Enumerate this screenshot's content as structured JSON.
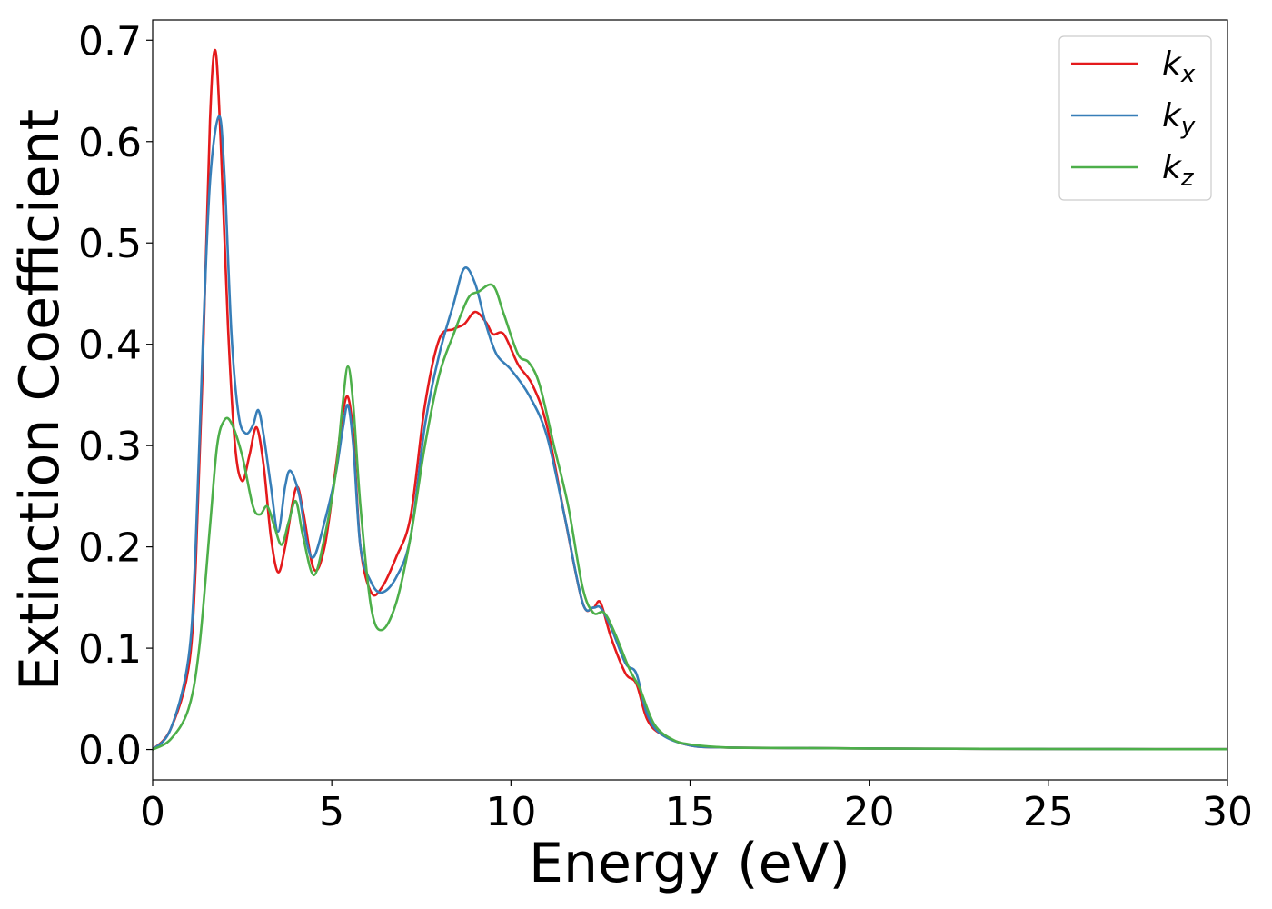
{
  "chart_data": {
    "type": "line",
    "title": "",
    "xlabel": "Energy (eV)",
    "ylabel": "Extinction Coefficient",
    "xlim": [
      0,
      30
    ],
    "ylim": [
      -0.03,
      0.72
    ],
    "xticks": [
      0,
      5,
      10,
      15,
      20,
      25,
      30
    ],
    "xtick_labels": [
      "0",
      "5",
      "10",
      "15",
      "20",
      "25",
      "30"
    ],
    "yticks": [
      0.0,
      0.1,
      0.2,
      0.3,
      0.4,
      0.5,
      0.6,
      0.7
    ],
    "ytick_labels": [
      "0.0",
      "0.1",
      "0.2",
      "0.3",
      "0.4",
      "0.5",
      "0.6",
      "0.7"
    ],
    "grid": false,
    "legend_position": "top-right",
    "series": [
      {
        "name": "k_x",
        "label_main": "k",
        "label_sub": "x",
        "color": "#e41a1c",
        "x": [
          0,
          0.5,
          1.0,
          1.2,
          1.4,
          1.6,
          1.75,
          1.9,
          2.1,
          2.3,
          2.5,
          2.7,
          2.9,
          3.1,
          3.3,
          3.5,
          3.7,
          4.0,
          4.2,
          4.5,
          4.8,
          5.1,
          5.3,
          5.45,
          5.6,
          5.8,
          6.1,
          6.4,
          6.8,
          7.2,
          7.6,
          8.0,
          8.4,
          8.7,
          9.0,
          9.3,
          9.5,
          9.8,
          10.2,
          10.6,
          11.0,
          11.5,
          12.0,
          12.3,
          12.5,
          12.8,
          13.2,
          13.5,
          13.8,
          14.2,
          15.0,
          16.0,
          18.0,
          20.0,
          25.0,
          30.0
        ],
        "y": [
          0.0,
          0.02,
          0.08,
          0.18,
          0.38,
          0.62,
          0.69,
          0.6,
          0.42,
          0.3,
          0.265,
          0.29,
          0.318,
          0.28,
          0.21,
          0.175,
          0.2,
          0.258,
          0.235,
          0.178,
          0.2,
          0.275,
          0.33,
          0.348,
          0.31,
          0.2,
          0.155,
          0.16,
          0.19,
          0.23,
          0.34,
          0.405,
          0.415,
          0.42,
          0.432,
          0.422,
          0.41,
          0.41,
          0.38,
          0.36,
          0.32,
          0.23,
          0.145,
          0.14,
          0.145,
          0.11,
          0.075,
          0.065,
          0.03,
          0.015,
          0.004,
          0.002,
          0.0015,
          0.001,
          0.0005,
          0.0003
        ]
      },
      {
        "name": "k_y",
        "label_main": "k",
        "label_sub": "y",
        "color": "#377eb8",
        "x": [
          0,
          0.5,
          1.0,
          1.2,
          1.4,
          1.6,
          1.85,
          2.0,
          2.2,
          2.4,
          2.6,
          2.8,
          2.95,
          3.1,
          3.3,
          3.5,
          3.7,
          3.85,
          4.1,
          4.3,
          4.5,
          4.8,
          5.1,
          5.3,
          5.45,
          5.6,
          5.8,
          6.1,
          6.4,
          6.8,
          7.2,
          7.6,
          8.0,
          8.4,
          8.7,
          9.0,
          9.3,
          9.6,
          10.0,
          10.5,
          11.0,
          11.5,
          12.0,
          12.3,
          12.5,
          12.8,
          13.2,
          13.5,
          13.8,
          14.2,
          15.0,
          16.0,
          18.0,
          20.0,
          25.0,
          30.0
        ],
        "y": [
          0.0,
          0.02,
          0.09,
          0.2,
          0.4,
          0.56,
          0.625,
          0.57,
          0.41,
          0.33,
          0.312,
          0.32,
          0.335,
          0.31,
          0.26,
          0.215,
          0.26,
          0.275,
          0.25,
          0.205,
          0.19,
          0.225,
          0.27,
          0.315,
          0.34,
          0.3,
          0.2,
          0.165,
          0.155,
          0.17,
          0.21,
          0.32,
          0.39,
          0.44,
          0.475,
          0.46,
          0.42,
          0.39,
          0.375,
          0.35,
          0.31,
          0.23,
          0.145,
          0.14,
          0.14,
          0.12,
          0.085,
          0.075,
          0.035,
          0.015,
          0.004,
          0.002,
          0.0015,
          0.001,
          0.0005,
          0.0003
        ]
      },
      {
        "name": "k_z",
        "label_main": "k",
        "label_sub": "z",
        "color": "#4daf4a",
        "x": [
          0,
          0.5,
          1.0,
          1.3,
          1.6,
          1.8,
          2.0,
          2.2,
          2.5,
          2.8,
          3.0,
          3.2,
          3.4,
          3.6,
          3.8,
          4.0,
          4.2,
          4.5,
          4.8,
          5.1,
          5.3,
          5.45,
          5.6,
          5.8,
          6.1,
          6.4,
          6.8,
          7.2,
          7.6,
          8.0,
          8.4,
          8.8,
          9.1,
          9.5,
          9.8,
          10.2,
          10.5,
          10.8,
          11.2,
          11.6,
          12.0,
          12.3,
          12.6,
          12.9,
          13.3,
          13.6,
          14.0,
          14.5,
          15.0,
          16.0,
          18.0,
          20.0,
          25.0,
          30.0
        ],
        "y": [
          0.0,
          0.01,
          0.04,
          0.1,
          0.22,
          0.3,
          0.325,
          0.322,
          0.29,
          0.24,
          0.232,
          0.24,
          0.22,
          0.202,
          0.225,
          0.245,
          0.21,
          0.172,
          0.21,
          0.27,
          0.34,
          0.378,
          0.34,
          0.24,
          0.14,
          0.118,
          0.145,
          0.21,
          0.3,
          0.37,
          0.41,
          0.445,
          0.452,
          0.458,
          0.43,
          0.39,
          0.382,
          0.36,
          0.3,
          0.24,
          0.16,
          0.135,
          0.135,
          0.115,
          0.08,
          0.06,
          0.025,
          0.01,
          0.005,
          0.002,
          0.0015,
          0.001,
          0.0005,
          0.0003
        ]
      }
    ]
  }
}
